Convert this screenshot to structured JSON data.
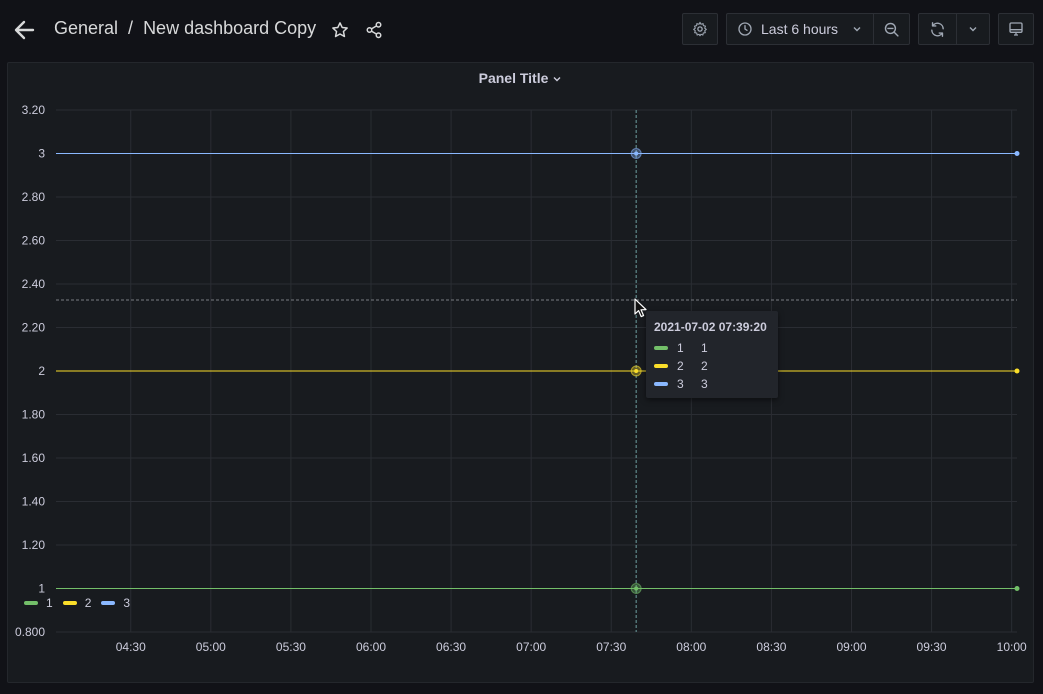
{
  "header": {
    "breadcrumb_folder": "General",
    "breadcrumb_sep": "/",
    "dashboard_title": "New dashboard Copy",
    "time_range": "Last 6 hours"
  },
  "panel": {
    "title": "Panel Title"
  },
  "tooltip": {
    "time": "2021-07-02 07:39:20",
    "rows": [
      {
        "name": "1",
        "value": "1",
        "color": "#73bf69"
      },
      {
        "name": "2",
        "value": "2",
        "color": "#fade2a"
      },
      {
        "name": "3",
        "value": "3",
        "color": "#8ab8ff"
      }
    ]
  },
  "legend": [
    {
      "name": "1",
      "color": "#73bf69"
    },
    {
      "name": "2",
      "color": "#fade2a"
    },
    {
      "name": "3",
      "color": "#8ab8ff"
    }
  ],
  "chart_data": {
    "type": "line",
    "title": "Panel Title",
    "x_ticks": [
      "04:30",
      "05:00",
      "05:30",
      "06:00",
      "06:30",
      "07:00",
      "07:30",
      "08:00",
      "08:30",
      "09:00",
      "09:30",
      "10:00"
    ],
    "y_ticks": [
      "3.20",
      "3",
      "2.80",
      "2.60",
      "2.40",
      "2.20",
      "2",
      "1.80",
      "1.60",
      "1.40",
      "1.20",
      "1",
      "0.800"
    ],
    "ylim": [
      0.8,
      3.2
    ],
    "xlim": [
      "04:02",
      "10:02"
    ],
    "grid": true,
    "legend_position": "bottom-left",
    "hover_time": "07:39:20",
    "series": [
      {
        "name": "1",
        "color": "#73bf69",
        "x": [
          "04:02",
          "10:02"
        ],
        "values": [
          1,
          1
        ]
      },
      {
        "name": "2",
        "color": "#fade2a",
        "x": [
          "04:02",
          "10:02"
        ],
        "values": [
          2,
          2
        ]
      },
      {
        "name": "3",
        "color": "#8ab8ff",
        "x": [
          "04:02",
          "10:02"
        ],
        "values": [
          3,
          3
        ]
      }
    ]
  }
}
